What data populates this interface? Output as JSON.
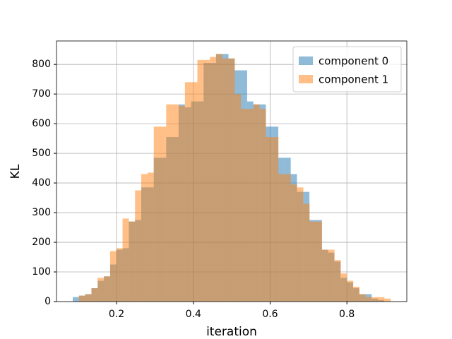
{
  "chart_data": {
    "type": "histogram",
    "xlabel": "iteration",
    "ylabel": "KL",
    "xlim": [
      0.0436,
      0.956
    ],
    "ylim": [
      0,
      879
    ],
    "xticks": [
      0.2,
      0.4,
      0.6,
      0.8
    ],
    "yticks": [
      0,
      100,
      200,
      300,
      400,
      500,
      600,
      700,
      800
    ],
    "grid": true,
    "legend": "upper right",
    "alpha": 0.5,
    "series": [
      {
        "name": "component 0",
        "color": "#1f77b4",
        "bins": [
          0.086,
          0.1022,
          0.1184,
          0.1347,
          0.1509,
          0.1671,
          0.1833,
          0.1995,
          0.2158,
          0.232,
          0.2482,
          0.2644,
          0.2806,
          0.2969,
          0.3131,
          0.3293,
          0.3455,
          0.3617,
          0.378,
          0.3942,
          0.4104,
          0.4266,
          0.4428,
          0.4591,
          0.4753,
          0.4915,
          0.5077,
          0.5239,
          0.5402,
          0.5564,
          0.5726,
          0.5888,
          0.605,
          0.6213,
          0.6375,
          0.6537,
          0.6699,
          0.6861,
          0.7024,
          0.7186,
          0.7348,
          0.751,
          0.7672,
          0.7835,
          0.7997,
          0.8159,
          0.8321,
          0.8483,
          0.8646,
          0.8808,
          0.897
        ],
        "values": [
          15,
          20,
          25,
          45,
          70,
          85,
          125,
          175,
          180,
          270,
          275,
          385,
          385,
          485,
          485,
          555,
          555,
          665,
          655,
          675,
          675,
          805,
          805,
          835,
          835,
          820,
          780,
          780,
          675,
          665,
          665,
          590,
          590,
          485,
          485,
          430,
          370,
          370,
          275,
          275,
          175,
          165,
          135,
          80,
          65,
          45,
          25,
          25,
          10,
          5
        ]
      },
      {
        "name": "component 1",
        "color": "#ff7f0e",
        "bins": [
          0.102,
          0.1182,
          0.1345,
          0.1507,
          0.167,
          0.1832,
          0.1994,
          0.2157,
          0.2319,
          0.2482,
          0.2644,
          0.2806,
          0.2969,
          0.3131,
          0.3294,
          0.3456,
          0.3618,
          0.3781,
          0.3943,
          0.4106,
          0.4268,
          0.443,
          0.4593,
          0.4755,
          0.4918,
          0.508,
          0.5242,
          0.5405,
          0.5567,
          0.573,
          0.5892,
          0.6054,
          0.6217,
          0.6379,
          0.6542,
          0.6704,
          0.6866,
          0.7029,
          0.7191,
          0.7354,
          0.7516,
          0.7678,
          0.7841,
          0.8003,
          0.8166,
          0.8328,
          0.849,
          0.8653,
          0.8815,
          0.8978,
          0.914
        ],
        "values": [
          20,
          25,
          45,
          80,
          85,
          170,
          180,
          280,
          270,
          375,
          430,
          435,
          590,
          590,
          665,
          665,
          660,
          740,
          740,
          815,
          815,
          825,
          835,
          820,
          820,
          700,
          650,
          650,
          665,
          650,
          555,
          555,
          430,
          430,
          395,
          385,
          330,
          270,
          270,
          175,
          175,
          140,
          95,
          70,
          50,
          25,
          15,
          15,
          15,
          10
        ]
      }
    ]
  }
}
